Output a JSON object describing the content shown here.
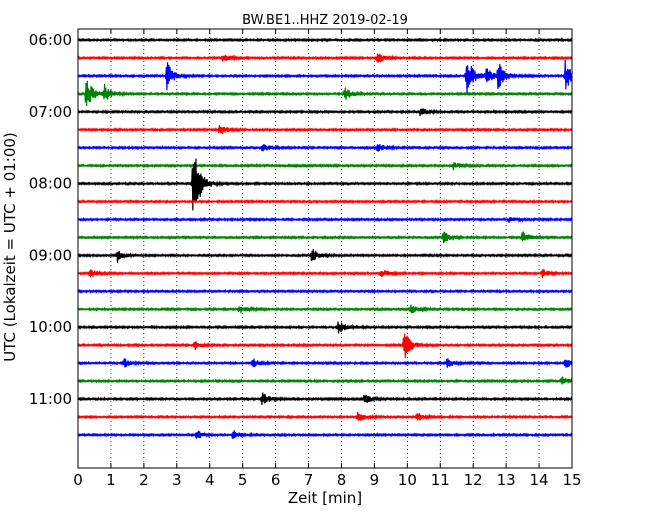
{
  "chart_data": {
    "type": "line",
    "title": "BW.BE1..HHZ 2019-02-19",
    "xlabel": "Zeit  [min]",
    "ylabel": "UTC (Lokalzeit = UTC + 01:00)",
    "xlim": [
      0,
      15
    ],
    "x_ticks": [
      "0",
      "1",
      "2",
      "3",
      "4",
      "5",
      "6",
      "7",
      "8",
      "9",
      "10",
      "11",
      "12",
      "13",
      "14",
      "15"
    ],
    "y_tick_labels": [
      "06:00",
      "07:00",
      "08:00",
      "09:00",
      "10:00",
      "11:00"
    ],
    "row_start": "06:00",
    "row_interval_min": 15,
    "grid_vertical": true,
    "grid_style": "dotted",
    "trace_colors": [
      "#000000",
      "#ff0000",
      "#0000ff",
      "#008000"
    ],
    "traces": [
      {
        "start": "06:00",
        "events": []
      },
      {
        "start": "06:15",
        "events": [
          {
            "t": 4.4,
            "amp": 0.25
          },
          {
            "t": 9.1,
            "amp": 0.35
          }
        ]
      },
      {
        "start": "06:30",
        "events": [
          {
            "t": 2.7,
            "amp": 0.9
          },
          {
            "t": 11.8,
            "amp": 1.3
          },
          {
            "t": 12.4,
            "amp": 0.5
          },
          {
            "t": 12.75,
            "amp": 0.9
          },
          {
            "t": 14.8,
            "amp": 1.0
          }
        ]
      },
      {
        "start": "06:45",
        "events": [
          {
            "t": 0.25,
            "amp": 1.0
          },
          {
            "t": 0.8,
            "amp": 0.55
          },
          {
            "t": 8.1,
            "amp": 0.4
          }
        ]
      },
      {
        "start": "07:00",
        "events": [
          {
            "t": 10.4,
            "amp": 0.3
          }
        ]
      },
      {
        "start": "07:15",
        "events": [
          {
            "t": 4.3,
            "amp": 0.35
          }
        ]
      },
      {
        "start": "07:30",
        "events": [
          {
            "t": 5.6,
            "amp": 0.3
          },
          {
            "t": 9.1,
            "amp": 0.3
          }
        ]
      },
      {
        "start": "07:45",
        "events": [
          {
            "t": 11.4,
            "amp": 0.25
          }
        ]
      },
      {
        "start": "08:00",
        "events": [
          {
            "t": 3.5,
            "amp": 2.7
          }
        ]
      },
      {
        "start": "08:15",
        "events": []
      },
      {
        "start": "08:30",
        "events": [
          {
            "t": 13.1,
            "amp": 0.25
          }
        ]
      },
      {
        "start": "08:45",
        "events": [
          {
            "t": 11.1,
            "amp": 0.35
          },
          {
            "t": 13.5,
            "amp": 0.4
          }
        ]
      },
      {
        "start": "09:00",
        "events": [
          {
            "t": 1.2,
            "amp": 0.4
          },
          {
            "t": 7.1,
            "amp": 0.45
          }
        ]
      },
      {
        "start": "09:15",
        "events": [
          {
            "t": 0.35,
            "amp": 0.35
          },
          {
            "t": 9.2,
            "amp": 0.3
          },
          {
            "t": 14.1,
            "amp": 0.3
          }
        ]
      },
      {
        "start": "09:30",
        "events": []
      },
      {
        "start": "09:45",
        "events": [
          {
            "t": 4.9,
            "amp": 0.25
          },
          {
            "t": 10.1,
            "amp": 0.3
          }
        ]
      },
      {
        "start": "10:00",
        "events": [
          {
            "t": 7.9,
            "amp": 0.45
          }
        ]
      },
      {
        "start": "10:15",
        "events": [
          {
            "t": 3.55,
            "amp": 0.3
          },
          {
            "t": 9.9,
            "amp": 0.95
          }
        ]
      },
      {
        "start": "10:30",
        "events": [
          {
            "t": 1.4,
            "amp": 0.3
          },
          {
            "t": 5.3,
            "amp": 0.3
          },
          {
            "t": 11.2,
            "amp": 0.3
          },
          {
            "t": 14.8,
            "amp": 0.35
          }
        ]
      },
      {
        "start": "10:45",
        "events": [
          {
            "t": 14.7,
            "amp": 0.25
          }
        ]
      },
      {
        "start": "11:00",
        "events": [
          {
            "t": 5.6,
            "amp": 0.45
          },
          {
            "t": 8.7,
            "amp": 0.3
          }
        ]
      },
      {
        "start": "11:15",
        "events": [
          {
            "t": 8.5,
            "amp": 0.35
          },
          {
            "t": 10.3,
            "amp": 0.3
          }
        ]
      },
      {
        "start": "11:30",
        "events": [
          {
            "t": 3.6,
            "amp": 0.3
          },
          {
            "t": 4.7,
            "amp": 0.3
          }
        ]
      }
    ]
  }
}
